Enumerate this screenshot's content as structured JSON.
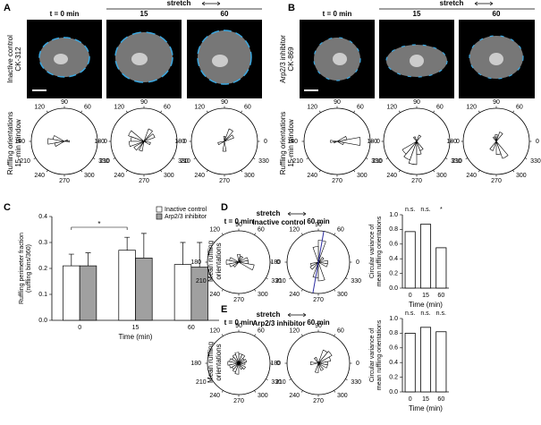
{
  "figure": {
    "panel_labels": [
      "A",
      "B",
      "C",
      "D",
      "E"
    ],
    "A": {
      "columns": [
        "t = 0 min",
        "15",
        "60"
      ],
      "stretch": "stretch",
      "row_label": [
        "Inactive control",
        "CK-312"
      ],
      "rose_label": [
        "Ruffling orientations",
        "15-min window"
      ]
    },
    "B": {
      "columns": [
        "t = 0 min",
        "15",
        "60"
      ],
      "stretch": "stretch",
      "row_label": [
        "Arp2/3 inhibitor",
        "CK-869"
      ],
      "rose_label": [
        "Ruffling orientations",
        "15-min window"
      ]
    },
    "D": {
      "stretch": "stretch",
      "condition": "Inactive control",
      "rose_label": [
        "Mean ruffling",
        "orientations"
      ]
    },
    "E": {
      "stretch": "stretch",
      "condition": "Arp2/3 inhibitor",
      "rose_label": [
        "Mean ruffling",
        "orientations"
      ]
    }
  },
  "chart_data": [
    {
      "type": "rose",
      "angle_ticks": [
        0,
        60,
        90,
        120,
        180,
        210,
        240,
        270,
        300,
        330
      ],
      "bin_width": 20,
      "rlim": [
        0,
        1
      ],
      "angles": [
        160,
        180,
        200,
        0,
        20
      ],
      "values": [
        0.35,
        0.5,
        0.3,
        0.15,
        0.1
      ]
    },
    {
      "type": "rose",
      "angle_ticks": [
        0,
        60,
        90,
        120,
        180,
        210,
        240,
        270,
        300,
        330
      ],
      "bin_width": 20,
      "rlim": [
        0,
        1
      ],
      "angles": [
        150,
        170,
        190,
        220,
        250,
        30,
        60,
        340
      ],
      "values": [
        0.5,
        0.4,
        0.45,
        0.35,
        0.3,
        0.35,
        0.4,
        0.2
      ]
    },
    {
      "type": "rose",
      "angle_ticks": [
        0,
        60,
        90,
        120,
        180,
        210,
        240,
        270,
        300,
        330
      ],
      "bin_width": 20,
      "rlim": [
        0,
        1
      ],
      "angles": [
        90,
        30,
        60,
        270,
        200
      ],
      "values": [
        0.15,
        0.3,
        0.4,
        0.3,
        0.2
      ]
    },
    {
      "type": "rose",
      "angle_ticks": [
        0,
        60,
        90,
        120,
        180,
        210,
        240,
        270,
        300,
        330
      ],
      "bin_width": 20,
      "rlim": [
        0,
        1
      ],
      "angles": [
        0,
        20,
        340,
        180,
        200
      ],
      "values": [
        0.7,
        0.3,
        0.2,
        0.2,
        0.1
      ]
    },
    {
      "type": "rose",
      "angle_ticks": [
        0,
        60,
        90,
        120,
        180,
        210,
        240,
        270,
        300,
        330
      ],
      "bin_width": 20,
      "rlim": [
        0,
        1
      ],
      "angles": [
        240,
        260,
        220,
        280,
        300,
        60,
        120
      ],
      "values": [
        0.6,
        0.7,
        0.5,
        0.4,
        0.3,
        0.2,
        0.15
      ]
    },
    {
      "type": "rose",
      "angle_ticks": [
        0,
        60,
        90,
        120,
        180,
        210,
        240,
        270,
        300,
        330
      ],
      "bin_width": 20,
      "rlim": [
        0,
        1
      ],
      "angles": [
        300,
        280,
        240,
        60,
        90,
        120
      ],
      "values": [
        0.55,
        0.4,
        0.3,
        0.3,
        0.2,
        0.15
      ]
    },
    {
      "type": "bar",
      "categories": [
        "0",
        "15",
        "60"
      ],
      "xlabel": "Time (min)",
      "ylabel": [
        "Ruffling perimeter fraction",
        "(ruffling bins/360)"
      ],
      "ylim": [
        0,
        0.4
      ],
      "yticks": [
        {
          "value": 0,
          "label": "0.0"
        },
        0.1,
        0.2,
        0.3,
        0.4
      ],
      "series": [
        {
          "name": "Inactive control",
          "color": "#ffffff",
          "values": [
            0.21,
            0.27,
            0.215
          ],
          "errors": [
            0.045,
            0.05,
            0.085
          ]
        },
        {
          "name": "Arp2/3 inhibitor",
          "color": "#a0a0a0",
          "values": [
            0.21,
            0.24,
            0.205
          ],
          "errors": [
            0.05,
            0.095,
            0.095
          ]
        }
      ],
      "significance": "*"
    },
    {
      "type": "rose",
      "title": "t = 0 min",
      "angle_ticks": [
        0,
        60,
        90,
        120,
        180,
        210,
        240,
        270,
        300,
        330
      ],
      "bin_width": 20,
      "rlim": [
        0,
        1
      ],
      "angles": [
        160,
        180,
        200,
        220,
        340,
        0,
        20,
        60,
        90
      ],
      "values": [
        0.3,
        0.4,
        0.3,
        0.2,
        0.5,
        0.3,
        0.3,
        0.2,
        0.25
      ]
    },
    {
      "type": "rose",
      "title": "60 min",
      "angle_ticks": [
        0,
        60,
        90,
        120,
        180,
        210,
        240,
        270,
        300,
        330
      ],
      "bin_width": 20,
      "rlim": [
        0,
        1
      ],
      "angles": [
        80,
        100,
        260,
        280,
        340,
        0,
        200,
        220,
        40
      ],
      "values": [
        0.7,
        0.5,
        0.5,
        0.6,
        0.3,
        0.3,
        0.25,
        0.3,
        0.2
      ],
      "mean_direction": 80,
      "mean_color": "#2a2aa0"
    },
    {
      "type": "bar",
      "categories": [
        "0",
        "15",
        "60"
      ],
      "xlabel": "Time (min)",
      "ylabel": [
        "Circular variance of",
        "mean ruffling orientations"
      ],
      "ylim": [
        0,
        1
      ],
      "yticks": [
        {
          "value": 0,
          "label": "0.0"
        },
        0.2,
        0.4,
        0.6,
        0.8,
        {
          "value": 1,
          "label": "1.0"
        }
      ],
      "values": [
        0.77,
        0.87,
        0.55
      ],
      "color": "#ffffff",
      "annotations": [
        "n.s.",
        "n.s.",
        "*"
      ]
    },
    {
      "type": "rose",
      "title": "t = 0 min",
      "angle_ticks": [
        0,
        60,
        90,
        120,
        180,
        210,
        240,
        270,
        300,
        330
      ],
      "bin_width": 20,
      "rlim": [
        0,
        1
      ],
      "angles": [
        80,
        100,
        120,
        140,
        160,
        180,
        200,
        220,
        240,
        260,
        300,
        320,
        0,
        20,
        40,
        60
      ],
      "values": [
        0.3,
        0.35,
        0.3,
        0.25,
        0.3,
        0.35,
        0.3,
        0.25,
        0.3,
        0.35,
        0.2,
        0.25,
        0.2,
        0.25,
        0.2,
        0.3
      ]
    },
    {
      "type": "rose",
      "title": "60 min",
      "angle_ticks": [
        0,
        60,
        90,
        120,
        180,
        210,
        240,
        270,
        300,
        330
      ],
      "bin_width": 20,
      "rlim": [
        0,
        1
      ],
      "angles": [
        40,
        60,
        20,
        0,
        340,
        300,
        260,
        120,
        180
      ],
      "values": [
        0.5,
        0.45,
        0.4,
        0.3,
        0.3,
        0.25,
        0.3,
        0.2,
        0.25
      ]
    },
    {
      "type": "bar",
      "categories": [
        "0",
        "15",
        "60"
      ],
      "xlabel": "Time (min)",
      "ylabel": [
        "Circular variance of",
        "mean ruffling orientations"
      ],
      "ylim": [
        0,
        1
      ],
      "yticks": [
        {
          "value": 0,
          "label": "0.0"
        },
        0.2,
        0.4,
        0.6,
        0.8,
        {
          "value": 1,
          "label": "1.0"
        }
      ],
      "values": [
        0.8,
        0.88,
        0.82
      ],
      "color": "#ffffff",
      "annotations": [
        "n.s.",
        "n.s.",
        "n.s."
      ]
    }
  ]
}
